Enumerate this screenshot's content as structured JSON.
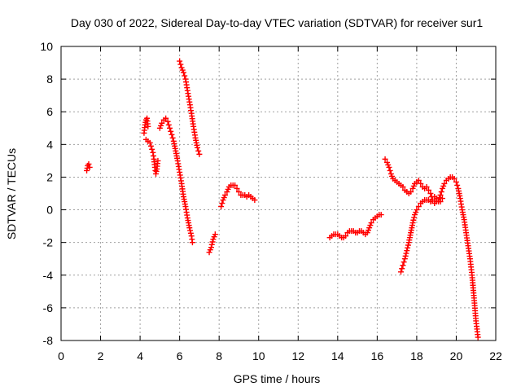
{
  "chart_data": {
    "type": "scatter",
    "title": "Day 030 of 2022, Sidereal Day-to-day VTEC variation (SDTVAR) for receiver sur1",
    "xlabel": "GPS time / hours",
    "ylabel": "SDTVAR / TECUs",
    "xlim": [
      0,
      22
    ],
    "ylim": [
      -8,
      10
    ],
    "xticks": [
      0,
      2,
      4,
      6,
      8,
      10,
      12,
      14,
      16,
      18,
      20,
      22
    ],
    "yticks": [
      -8,
      -6,
      -4,
      -2,
      0,
      2,
      4,
      6,
      8,
      10
    ],
    "grid": true,
    "marker": "+",
    "color": "#ff0000",
    "series": [
      {
        "name": "sur1",
        "segments": [
          [
            [
              1.3,
              2.4
            ],
            [
              1.35,
              2.7
            ],
            [
              1.4,
              2.8
            ],
            [
              1.45,
              2.6
            ]
          ],
          [
            [
              4.2,
              4.7
            ],
            [
              4.25,
              5.2
            ],
            [
              4.3,
              5.5
            ],
            [
              4.35,
              5.6
            ],
            [
              4.4,
              5.1
            ]
          ],
          [
            [
              4.3,
              4.3
            ],
            [
              4.4,
              4.2
            ],
            [
              4.5,
              4.1
            ],
            [
              4.55,
              3.9
            ],
            [
              4.6,
              3.7
            ],
            [
              4.65,
              3.5
            ],
            [
              4.7,
              3.1
            ],
            [
              4.75,
              2.6
            ],
            [
              4.8,
              2.2
            ],
            [
              4.85,
              2.5
            ],
            [
              4.9,
              3.0
            ]
          ],
          [
            [
              5.0,
              5.0
            ],
            [
              5.1,
              5.3
            ],
            [
              5.2,
              5.5
            ],
            [
              5.3,
              5.6
            ],
            [
              5.4,
              5.4
            ],
            [
              5.5,
              5.0
            ],
            [
              5.6,
              4.6
            ],
            [
              5.7,
              4.2
            ],
            [
              5.8,
              3.6
            ],
            [
              5.9,
              3.0
            ],
            [
              6.0,
              2.3
            ],
            [
              6.1,
              1.6
            ],
            [
              6.2,
              0.8
            ],
            [
              6.3,
              0.2
            ],
            [
              6.4,
              -0.5
            ],
            [
              6.5,
              -1.1
            ],
            [
              6.6,
              -1.6
            ],
            [
              6.65,
              -2.0
            ]
          ],
          [
            [
              6.0,
              9.1
            ],
            [
              6.1,
              8.7
            ],
            [
              6.2,
              8.4
            ],
            [
              6.3,
              8.0
            ],
            [
              6.4,
              7.3
            ],
            [
              6.5,
              6.6
            ],
            [
              6.6,
              5.9
            ],
            [
              6.7,
              5.1
            ],
            [
              6.8,
              4.4
            ],
            [
              6.9,
              3.8
            ],
            [
              7.0,
              3.4
            ]
          ],
          [
            [
              7.5,
              -2.6
            ],
            [
              7.6,
              -2.3
            ],
            [
              7.7,
              -1.8
            ],
            [
              7.8,
              -1.5
            ]
          ],
          [
            [
              8.1,
              0.2
            ],
            [
              8.2,
              0.6
            ],
            [
              8.3,
              0.9
            ],
            [
              8.4,
              1.1
            ],
            [
              8.5,
              1.4
            ],
            [
              8.6,
              1.5
            ],
            [
              8.7,
              1.5
            ],
            [
              8.8,
              1.5
            ],
            [
              8.9,
              1.3
            ],
            [
              9.0,
              1.1
            ],
            [
              9.1,
              0.9
            ],
            [
              9.2,
              0.9
            ],
            [
              9.3,
              0.9
            ],
            [
              9.4,
              0.8
            ],
            [
              9.5,
              0.9
            ],
            [
              9.6,
              0.8
            ],
            [
              9.7,
              0.7
            ],
            [
              9.8,
              0.6
            ]
          ],
          [
            [
              13.6,
              -1.7
            ],
            [
              13.7,
              -1.6
            ],
            [
              13.8,
              -1.5
            ],
            [
              13.9,
              -1.5
            ],
            [
              14.0,
              -1.5
            ],
            [
              14.1,
              -1.6
            ],
            [
              14.2,
              -1.7
            ],
            [
              14.3,
              -1.7
            ],
            [
              14.4,
              -1.6
            ],
            [
              14.5,
              -1.4
            ],
            [
              14.6,
              -1.3
            ],
            [
              14.7,
              -1.3
            ],
            [
              14.8,
              -1.3
            ],
            [
              14.9,
              -1.4
            ],
            [
              15.0,
              -1.4
            ],
            [
              15.1,
              -1.3
            ],
            [
              15.2,
              -1.3
            ],
            [
              15.3,
              -1.4
            ],
            [
              15.4,
              -1.5
            ],
            [
              15.5,
              -1.4
            ],
            [
              15.6,
              -1.1
            ],
            [
              15.7,
              -0.8
            ],
            [
              15.8,
              -0.6
            ],
            [
              15.9,
              -0.5
            ],
            [
              16.0,
              -0.4
            ],
            [
              16.1,
              -0.3
            ],
            [
              16.2,
              -0.3
            ]
          ],
          [
            [
              16.4,
              3.1
            ],
            [
              16.5,
              2.9
            ],
            [
              16.6,
              2.6
            ],
            [
              16.7,
              2.2
            ],
            [
              16.8,
              1.9
            ],
            [
              16.9,
              1.8
            ],
            [
              17.0,
              1.7
            ],
            [
              17.1,
              1.6
            ],
            [
              17.2,
              1.5
            ],
            [
              17.3,
              1.4
            ],
            [
              17.4,
              1.2
            ],
            [
              17.5,
              1.1
            ],
            [
              17.6,
              1.0
            ],
            [
              17.7,
              1.1
            ],
            [
              17.8,
              1.3
            ],
            [
              17.9,
              1.6
            ],
            [
              18.0,
              1.7
            ],
            [
              18.1,
              1.8
            ],
            [
              18.2,
              1.6
            ],
            [
              18.3,
              1.4
            ],
            [
              18.4,
              1.3
            ],
            [
              18.5,
              1.4
            ],
            [
              18.6,
              1.2
            ],
            [
              18.7,
              1.0
            ],
            [
              18.8,
              0.6
            ],
            [
              18.9,
              0.4
            ],
            [
              19.0,
              0.5
            ],
            [
              19.1,
              0.6
            ],
            [
              19.2,
              0.9
            ],
            [
              19.3,
              1.3
            ],
            [
              19.4,
              1.6
            ],
            [
              19.5,
              1.8
            ],
            [
              19.6,
              1.9
            ],
            [
              19.7,
              2.0
            ],
            [
              19.8,
              2.0
            ],
            [
              19.9,
              1.9
            ],
            [
              20.0,
              1.7
            ],
            [
              20.1,
              1.3
            ],
            [
              20.2,
              0.7
            ],
            [
              20.3,
              0.0
            ],
            [
              20.4,
              -0.6
            ],
            [
              20.5,
              -1.4
            ],
            [
              20.6,
              -2.2
            ],
            [
              20.7,
              -3.0
            ],
            [
              20.8,
              -4.0
            ],
            [
              20.9,
              -5.4
            ],
            [
              21.0,
              -6.8
            ],
            [
              21.1,
              -7.8
            ]
          ],
          [
            [
              17.2,
              -3.8
            ],
            [
              17.3,
              -3.4
            ],
            [
              17.4,
              -3.0
            ],
            [
              17.5,
              -2.5
            ],
            [
              17.6,
              -2.0
            ],
            [
              17.7,
              -1.4
            ],
            [
              17.8,
              -0.8
            ],
            [
              17.9,
              -0.3
            ],
            [
              18.0,
              0.0
            ],
            [
              18.1,
              0.2
            ],
            [
              18.2,
              0.4
            ],
            [
              18.3,
              0.5
            ],
            [
              18.4,
              0.6
            ],
            [
              18.5,
              0.6
            ],
            [
              18.6,
              0.6
            ],
            [
              18.7,
              0.5
            ],
            [
              18.8,
              0.6
            ],
            [
              18.9,
              0.8
            ],
            [
              19.0,
              0.7
            ],
            [
              19.1,
              0.5
            ],
            [
              19.2,
              0.5
            ],
            [
              19.3,
              0.7
            ]
          ]
        ]
      }
    ]
  }
}
